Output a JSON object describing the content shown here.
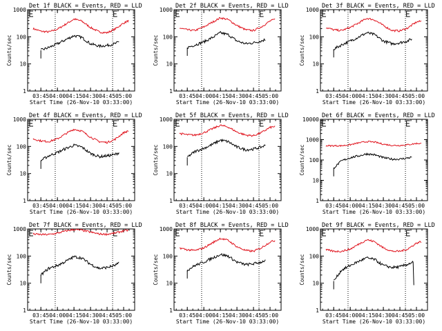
{
  "colors": {
    "events": "#000000",
    "lld": "#e0141e",
    "background": "#ffffff"
  },
  "xlabel": "Start Time (26-Nov-10 03:33:00)",
  "ylabel": "Counts/sec",
  "x_tick_labels": [
    "03:45",
    "04:00",
    "04:15",
    "04:30",
    "04:45",
    "05:00"
  ],
  "y_tick_labels": [
    "1",
    "10",
    "100",
    "1000"
  ],
  "y_tick_labels_det6": [
    "1",
    "10",
    "100",
    "1000",
    "10000"
  ],
  "chart_data": [
    {
      "type": "line",
      "title": "Det 1f BLACK = Events, RED = LLD",
      "ylim": [
        1,
        1000
      ],
      "scale": "log",
      "series": [
        {
          "name": "LLD",
          "x": [
            "03:38",
            "03:45",
            "03:52",
            "04:00",
            "04:08",
            "04:15",
            "04:22",
            "04:30",
            "04:38",
            "04:45",
            "04:52",
            "05:00",
            "05:05"
          ],
          "values": [
            200,
            160,
            150,
            190,
            300,
            450,
            380,
            220,
            150,
            140,
            190,
            320,
            400
          ]
        },
        {
          "name": "Events",
          "x": [
            "03:45",
            "03:52",
            "04:00",
            "04:08",
            "04:15",
            "04:22",
            "04:30",
            "04:38",
            "04:45",
            "04:52",
            "04:56"
          ],
          "values": [
            32,
            40,
            55,
            80,
            110,
            95,
            55,
            45,
            48,
            55,
            65
          ]
        }
      ]
    },
    {
      "type": "line",
      "title": "Det 2f BLACK = Events, RED = LLD",
      "ylim": [
        1,
        1000
      ],
      "scale": "log",
      "series": [
        {
          "name": "LLD",
          "x": [
            "03:38",
            "03:45",
            "03:52",
            "04:00",
            "04:08",
            "04:15",
            "04:22",
            "04:30",
            "04:38",
            "04:45",
            "04:52",
            "05:00",
            "05:05"
          ],
          "values": [
            210,
            180,
            170,
            230,
            350,
            500,
            430,
            260,
            180,
            170,
            230,
            380,
            450
          ]
        },
        {
          "name": "Events",
          "x": [
            "03:45",
            "03:52",
            "04:00",
            "04:08",
            "04:15",
            "04:22",
            "04:30",
            "04:38",
            "04:45",
            "04:52",
            "04:56"
          ],
          "values": [
            40,
            50,
            65,
            95,
            140,
            120,
            70,
            55,
            60,
            70,
            80
          ]
        }
      ]
    },
    {
      "type": "line",
      "title": "Det 3f BLACK = Events, RED = LLD",
      "ylim": [
        1,
        1000
      ],
      "scale": "log",
      "series": [
        {
          "name": "LLD",
          "x": [
            "03:38",
            "03:45",
            "03:52",
            "04:00",
            "04:08",
            "04:15",
            "04:22",
            "04:30",
            "04:38",
            "04:45",
            "04:52",
            "05:00",
            "05:05"
          ],
          "values": [
            220,
            180,
            170,
            220,
            330,
            480,
            420,
            260,
            170,
            165,
            210,
            350,
            380
          ]
        },
        {
          "name": "Events",
          "x": [
            "03:45",
            "03:52",
            "04:00",
            "04:08",
            "04:15",
            "04:22",
            "04:30",
            "04:38",
            "04:45",
            "04:52",
            "04:56"
          ],
          "values": [
            35,
            50,
            70,
            100,
            140,
            120,
            70,
            55,
            60,
            70,
            85
          ]
        }
      ]
    },
    {
      "type": "line",
      "title": "Det 4f BLACK = Events, RED = LLD",
      "ylim": [
        1,
        1000
      ],
      "scale": "log",
      "series": [
        {
          "name": "LLD",
          "x": [
            "03:38",
            "03:45",
            "03:52",
            "04:00",
            "04:08",
            "04:15",
            "04:22",
            "04:30",
            "04:38",
            "04:45",
            "04:52",
            "05:00",
            "05:05"
          ],
          "values": [
            190,
            160,
            150,
            190,
            300,
            430,
            370,
            220,
            150,
            140,
            180,
            320,
            380
          ]
        },
        {
          "name": "Events",
          "x": [
            "03:45",
            "03:52",
            "04:00",
            "04:08",
            "04:15",
            "04:22",
            "04:30",
            "04:38",
            "04:45",
            "04:52",
            "04:56"
          ],
          "values": [
            30,
            45,
            60,
            85,
            110,
            95,
            55,
            42,
            45,
            50,
            60
          ]
        }
      ]
    },
    {
      "type": "line",
      "title": "Det 5f BLACK = Events, RED = LLD",
      "ylim": [
        1,
        1000
      ],
      "scale": "log",
      "series": [
        {
          "name": "LLD",
          "x": [
            "03:38",
            "03:45",
            "03:52",
            "04:00",
            "04:08",
            "04:15",
            "04:22",
            "04:30",
            "04:38",
            "04:45",
            "04:52",
            "05:00",
            "05:05"
          ],
          "values": [
            300,
            270,
            260,
            320,
            450,
            600,
            520,
            340,
            260,
            250,
            320,
            500,
            550
          ]
        },
        {
          "name": "Events",
          "x": [
            "03:45",
            "03:52",
            "04:00",
            "04:08",
            "04:15",
            "04:22",
            "04:30",
            "04:38",
            "04:45",
            "04:52",
            "04:56"
          ],
          "values": [
            40,
            65,
            85,
            120,
            170,
            150,
            95,
            75,
            80,
            95,
            110
          ]
        }
      ]
    },
    {
      "type": "line",
      "title": "Det 6f BLACK = Events, RED = LLD",
      "ylim": [
        1,
        10000
      ],
      "scale": "log",
      "series": [
        {
          "name": "LLD",
          "x": [
            "03:38",
            "03:45",
            "03:52",
            "04:00",
            "04:08",
            "04:15",
            "04:22",
            "04:30",
            "04:38",
            "04:45",
            "04:52",
            "05:00",
            "05:05"
          ],
          "values": [
            500,
            500,
            500,
            560,
            700,
            800,
            760,
            600,
            520,
            520,
            560,
            650,
            640
          ]
        },
        {
          "name": "Events",
          "x": [
            "03:45",
            "03:52",
            "04:00",
            "04:08",
            "04:15",
            "04:22",
            "04:30",
            "04:38",
            "04:45",
            "04:52",
            "04:56"
          ],
          "values": [
            40,
            90,
            130,
            160,
            200,
            180,
            130,
            110,
            110,
            125,
            140
          ]
        }
      ]
    },
    {
      "type": "line",
      "title": "Det 7f BLACK = Events, RED = LLD",
      "ylim": [
        1,
        1000
      ],
      "scale": "log",
      "series": [
        {
          "name": "LLD",
          "x": [
            "03:38",
            "03:45",
            "03:52",
            "04:00",
            "04:08",
            "04:15",
            "04:22",
            "04:30",
            "04:38",
            "04:45",
            "04:52",
            "05:00",
            "05:05"
          ],
          "values": [
            650,
            620,
            620,
            700,
            850,
            950,
            900,
            760,
            650,
            640,
            700,
            850,
            900
          ]
        },
        {
          "name": "Events",
          "x": [
            "03:45",
            "03:52",
            "04:00",
            "04:08",
            "04:15",
            "04:22",
            "04:30",
            "04:38",
            "04:45",
            "04:52",
            "04:56"
          ],
          "values": [
            20,
            35,
            45,
            65,
            95,
            85,
            50,
            35,
            38,
            45,
            55
          ]
        }
      ]
    },
    {
      "type": "line",
      "title": "Det 8f BLACK = Events, RED = LLD",
      "ylim": [
        1,
        1000
      ],
      "scale": "log",
      "series": [
        {
          "name": "LLD",
          "x": [
            "03:38",
            "03:45",
            "03:52",
            "04:00",
            "04:08",
            "04:15",
            "04:22",
            "04:30",
            "04:38",
            "04:45",
            "04:52",
            "05:00",
            "05:05"
          ],
          "values": [
            200,
            170,
            160,
            200,
            310,
            450,
            380,
            220,
            160,
            150,
            200,
            330,
            380
          ]
        },
        {
          "name": "Events",
          "x": [
            "03:45",
            "03:52",
            "04:00",
            "04:08",
            "04:15",
            "04:22",
            "04:30",
            "04:38",
            "04:45",
            "04:52",
            "04:56"
          ],
          "values": [
            30,
            45,
            60,
            85,
            115,
            100,
            60,
            48,
            52,
            60,
            70
          ]
        }
      ]
    },
    {
      "type": "line",
      "title": "Det 9f BLACK = Events, RED = LLD",
      "ylim": [
        1,
        1000
      ],
      "scale": "log",
      "series": [
        {
          "name": "LLD",
          "x": [
            "03:38",
            "03:45",
            "03:52",
            "04:00",
            "04:08",
            "04:15",
            "04:22",
            "04:30",
            "04:38",
            "04:45",
            "04:52",
            "05:00",
            "05:05"
          ],
          "values": [
            170,
            150,
            150,
            180,
            280,
            400,
            340,
            200,
            150,
            150,
            180,
            300,
            350
          ]
        },
        {
          "name": "Events",
          "x": [
            "03:45",
            "03:52",
            "04:00",
            "04:08",
            "04:15",
            "04:22",
            "04:30",
            "04:38",
            "04:45",
            "04:52",
            "04:57",
            "04:58"
          ],
          "values": [
            12,
            30,
            45,
            65,
            85,
            75,
            45,
            38,
            40,
            50,
            60,
            2
          ]
        }
      ]
    }
  ]
}
